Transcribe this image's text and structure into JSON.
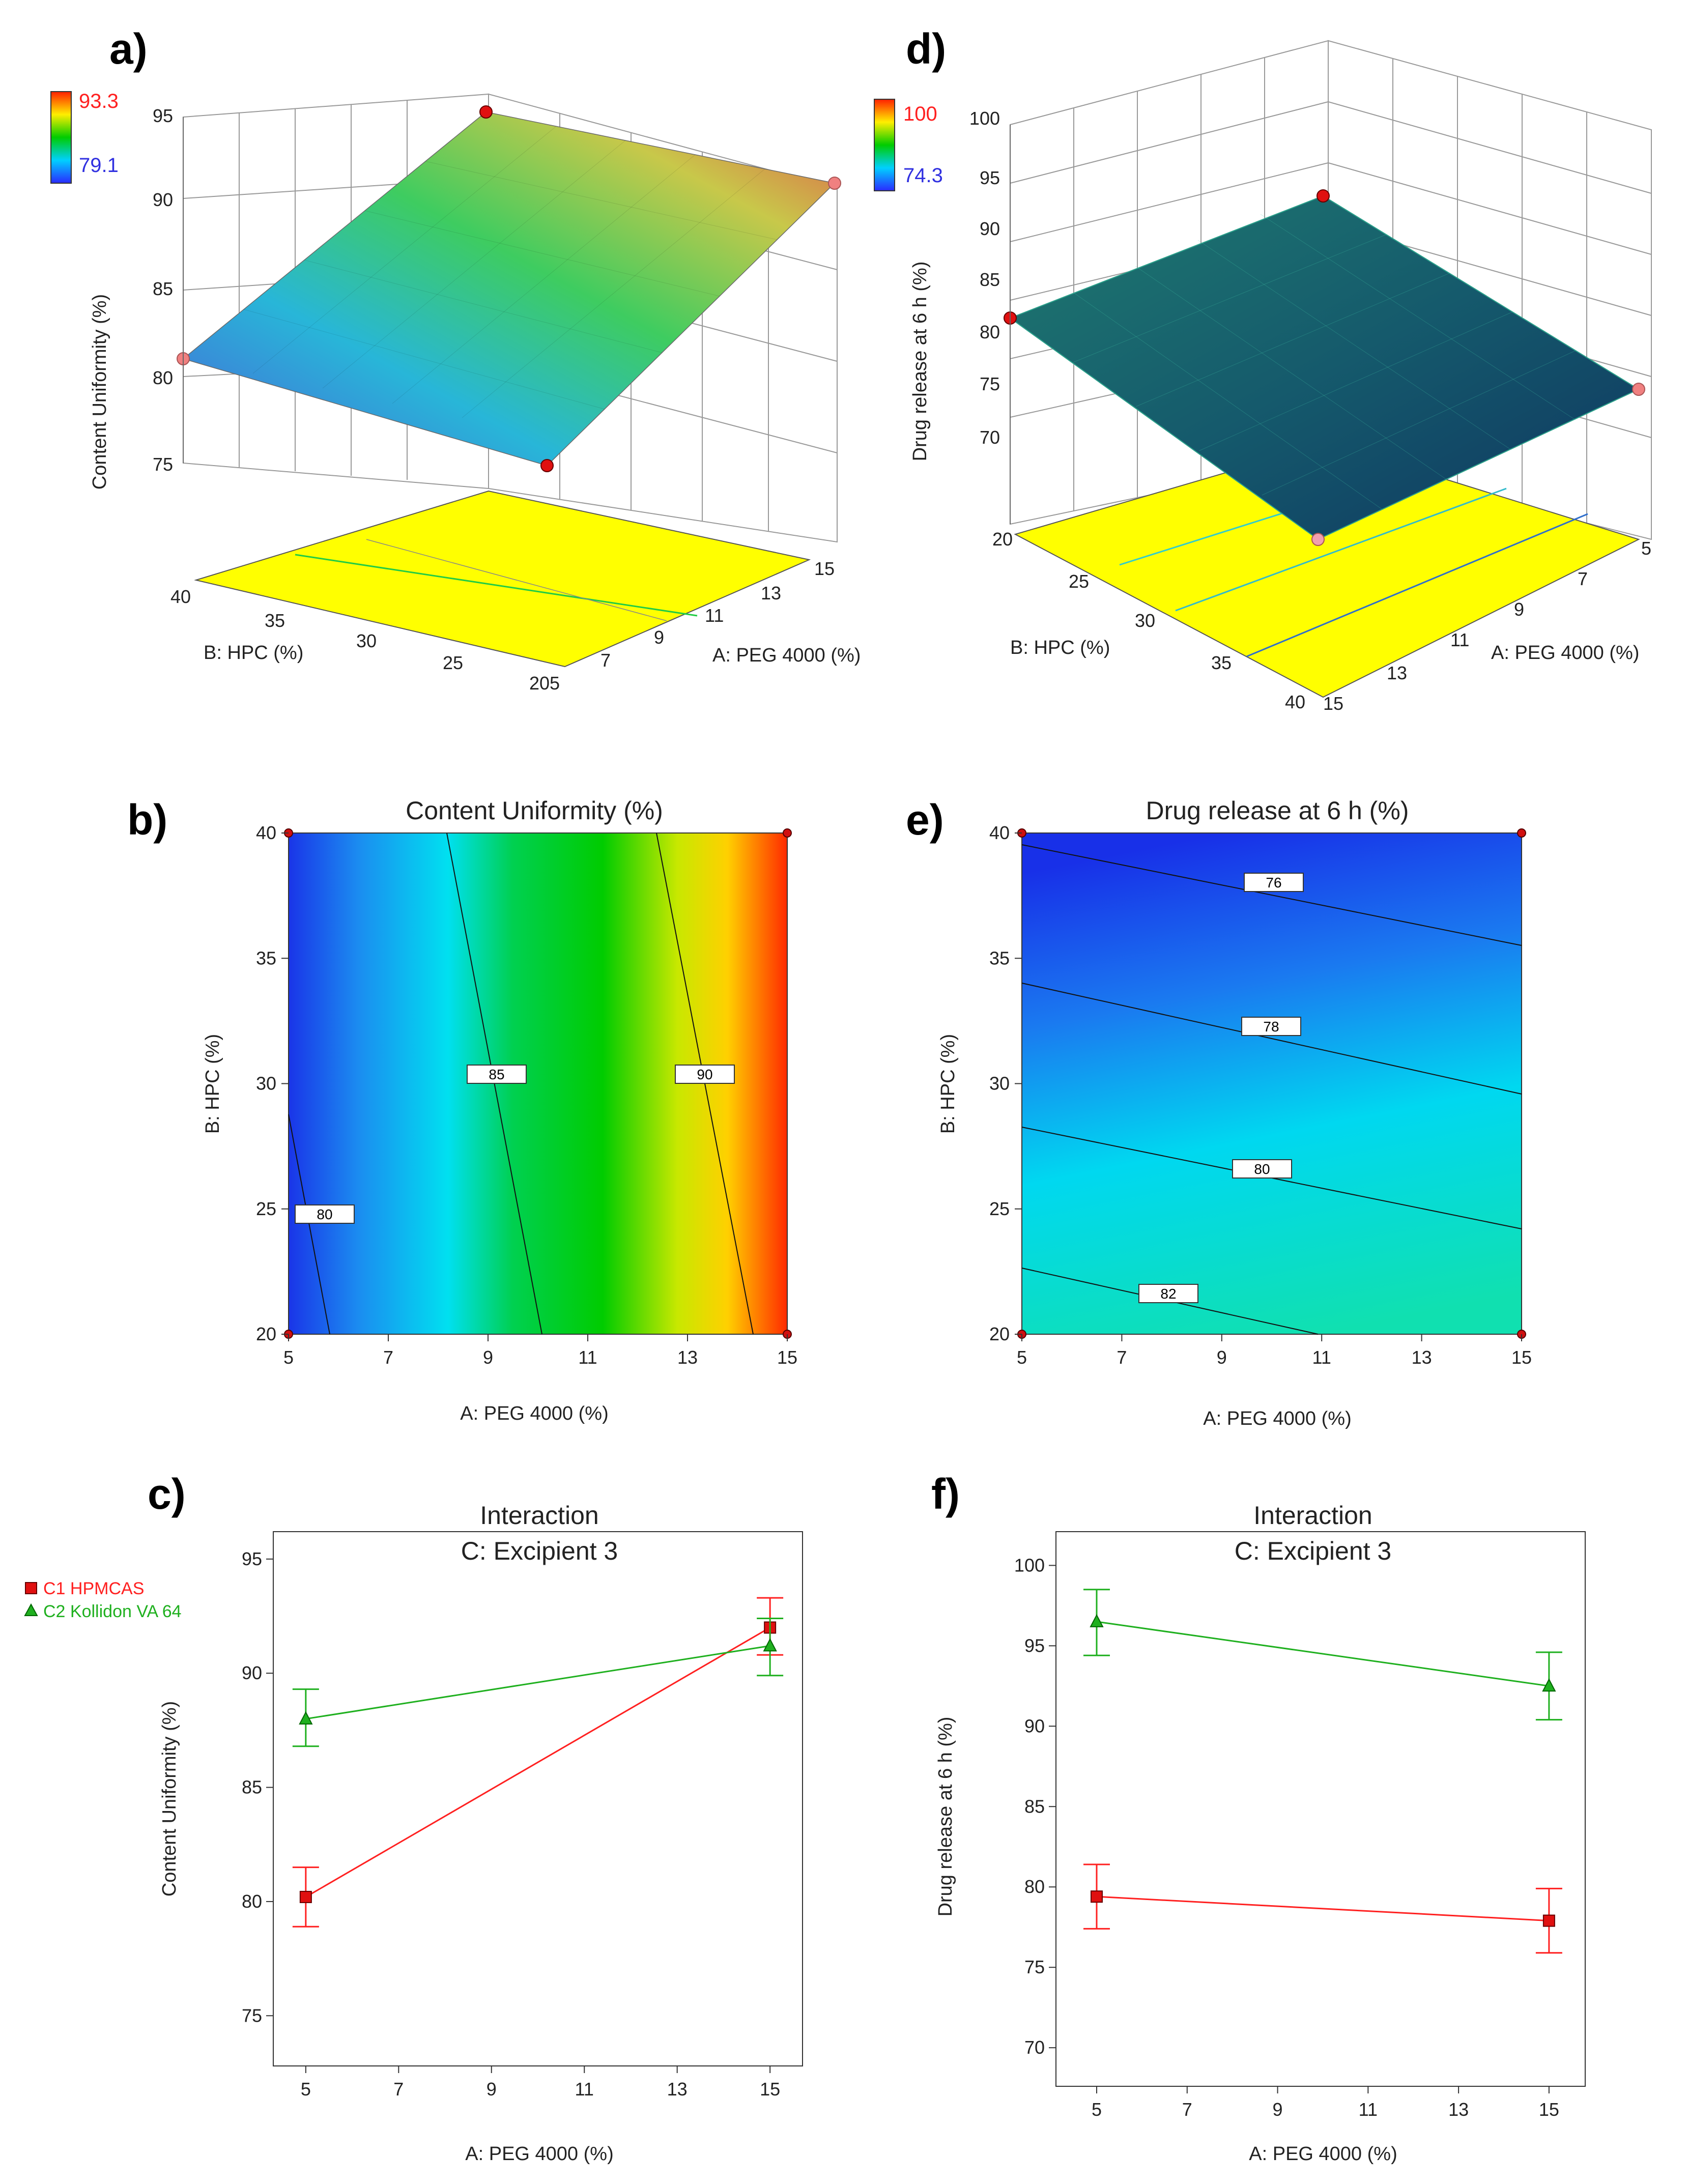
{
  "panels": {
    "a": {
      "label": "a)",
      "zlabel": "Content Uniformity (%)",
      "xlabel": "A: PEG 4000 (%)",
      "ylabel": "B: HPC (%)",
      "cb_max": "93.3",
      "cb_min": "79.1",
      "ticks_z": [
        "95",
        "90",
        "85",
        "80",
        "75"
      ],
      "ticks_x": [
        "5",
        "7",
        "9",
        "11",
        "13",
        "15"
      ],
      "ticks_y": [
        "40",
        "35",
        "30",
        "25",
        "20"
      ]
    },
    "d": {
      "label": "d)",
      "zlabel": "Drug release at 6 h (%)",
      "xlabel": "A: PEG 4000 (%)",
      "ylabel": "B: HPC (%)",
      "cb_max": "100",
      "cb_min": "74.3",
      "ticks_z": [
        "100",
        "95",
        "90",
        "85",
        "80",
        "75",
        "70"
      ],
      "ticks_x": [
        "5",
        "7",
        "9",
        "11",
        "13",
        "15"
      ],
      "ticks_y": [
        "20",
        "25",
        "30",
        "35",
        "40"
      ]
    },
    "b": {
      "label": "b)",
      "title": "Content Uniformity (%)",
      "xlabel": "A: PEG 4000 (%)",
      "ylabel": "B: HPC (%)",
      "contour_labels": [
        "80",
        "85",
        "90"
      ]
    },
    "e": {
      "label": "e)",
      "title": "Drug release at 6 h (%)",
      "xlabel": "A: PEG 4000 (%)",
      "ylabel": "B: HPC (%)",
      "contour_labels": [
        "76",
        "78",
        "80",
        "82"
      ]
    },
    "c": {
      "label": "c)",
      "title": "Interaction",
      "subtitle": "C: Excipient 3",
      "xlabel": "A: PEG 4000 (%)",
      "ylabel": "Content Uniformity (%)"
    },
    "f": {
      "label": "f)",
      "title": "Interaction",
      "subtitle": "C: Excipient 3",
      "xlabel": "A: PEG 4000 (%)",
      "ylabel": "Drug release at 6 h (%)"
    }
  },
  "legend": {
    "c1": "C1 HPMCAS",
    "c2": "C2 Kollidon VA 64"
  },
  "colors": {
    "c1": "#ff2020",
    "c2": "#1fb01f",
    "cb_max_text": "#ff2020",
    "cb_min_text": "#3030e0",
    "floor": "#ffff00"
  },
  "chart_data": [
    {
      "type": "surface",
      "panel": "a",
      "title": "",
      "zlabel": "Content Uniformity (%)",
      "xlabel": "A: PEG 4000 (%)",
      "ylabel": "B: HPC (%)",
      "xlim": [
        5,
        15
      ],
      "ylim": [
        20,
        40
      ],
      "zlim": [
        75,
        95
      ],
      "corners": [
        {
          "x": 5,
          "y": 20,
          "z": 79.1
        },
        {
          "x": 5,
          "y": 40,
          "z": 81.2
        },
        {
          "x": 15,
          "y": 40,
          "z": 93.3
        },
        {
          "x": 15,
          "y": 20,
          "z": 91.5
        }
      ],
      "colorbar": [
        79.1,
        93.3
      ]
    },
    {
      "type": "surface",
      "panel": "d",
      "title": "",
      "zlabel": "Drug release at 6 h (%)",
      "xlabel": "A: PEG 4000 (%)",
      "ylabel": "B: HPC (%)",
      "xlim": [
        5,
        15
      ],
      "ylim": [
        20,
        40
      ],
      "zlim": [
        70,
        100
      ],
      "corners": [
        {
          "x": 5,
          "y": 20,
          "z": 82
        },
        {
          "x": 5,
          "y": 40,
          "z": 78
        },
        {
          "x": 15,
          "y": 40,
          "z": 74.3
        },
        {
          "x": 15,
          "y": 20,
          "z": 79
        }
      ],
      "colorbar": [
        74.3,
        100
      ]
    },
    {
      "type": "heatmap",
      "panel": "b",
      "title": "Content Uniformity (%)",
      "xlabel": "A: PEG 4000 (%)",
      "ylabel": "B: HPC (%)",
      "xlim": [
        5,
        15
      ],
      "ylim": [
        20,
        40
      ],
      "xticks": [
        5,
        7,
        9,
        11,
        13,
        15
      ],
      "yticks": [
        20,
        25,
        30,
        35,
        40
      ],
      "range": [
        79.1,
        93.3
      ],
      "contours": [
        80,
        85,
        90
      ],
      "design_points": [
        [
          5,
          20
        ],
        [
          5,
          40
        ],
        [
          15,
          20
        ],
        [
          15,
          40
        ]
      ]
    },
    {
      "type": "heatmap",
      "panel": "e",
      "title": "Drug release at 6 h (%)",
      "xlabel": "A: PEG 4000 (%)",
      "ylabel": "B: HPC (%)",
      "xlim": [
        5,
        15
      ],
      "ylim": [
        20,
        40
      ],
      "xticks": [
        5,
        7,
        9,
        11,
        13,
        15
      ],
      "yticks": [
        20,
        25,
        30,
        35,
        40
      ],
      "range": [
        74.3,
        84
      ],
      "contours": [
        76,
        78,
        80,
        82
      ],
      "design_points": [
        [
          5,
          20
        ],
        [
          5,
          40
        ],
        [
          15,
          20
        ],
        [
          15,
          40
        ]
      ]
    },
    {
      "type": "line",
      "panel": "c",
      "title": "Interaction",
      "subtitle": "C: Excipient 3",
      "xlabel": "A: PEG 4000 (%)",
      "ylabel": "Content Uniformity (%)",
      "xlim": [
        4.3,
        15.7
      ],
      "ylim": [
        72.8,
        96.2
      ],
      "xticks": [
        5,
        7,
        9,
        11,
        13,
        15
      ],
      "yticks": [
        75,
        80,
        85,
        90,
        95
      ],
      "x": [
        5,
        15
      ],
      "series": [
        {
          "name": "C1 HPMCAS",
          "values": [
            80.2,
            92.0
          ],
          "err_low": [
            78.9,
            90.8
          ],
          "err_high": [
            81.5,
            93.3
          ]
        },
        {
          "name": "C2 Kollidon VA 64",
          "values": [
            88.0,
            91.2
          ],
          "err_low": [
            86.8,
            89.9
          ],
          "err_high": [
            89.3,
            92.4
          ]
        }
      ]
    },
    {
      "type": "line",
      "panel": "f",
      "title": "Interaction",
      "subtitle": "C: Excipient 3",
      "xlabel": "A: PEG 4000 (%)",
      "ylabel": "Drug release at 6 h (%)",
      "xlim": [
        4.1,
        15.8
      ],
      "ylim": [
        67.6,
        102.1
      ],
      "xticks": [
        5,
        7,
        9,
        11,
        13,
        15
      ],
      "yticks": [
        70,
        75,
        80,
        85,
        90,
        95,
        100
      ],
      "x": [
        5,
        15
      ],
      "series": [
        {
          "name": "C1 HPMCAS",
          "values": [
            79.4,
            77.9
          ],
          "err_low": [
            77.4,
            75.9
          ],
          "err_high": [
            81.4,
            79.9
          ]
        },
        {
          "name": "C2 Kollidon VA 64",
          "values": [
            96.5,
            92.5
          ],
          "err_low": [
            94.4,
            90.4
          ],
          "err_high": [
            98.5,
            94.6
          ]
        }
      ]
    }
  ]
}
